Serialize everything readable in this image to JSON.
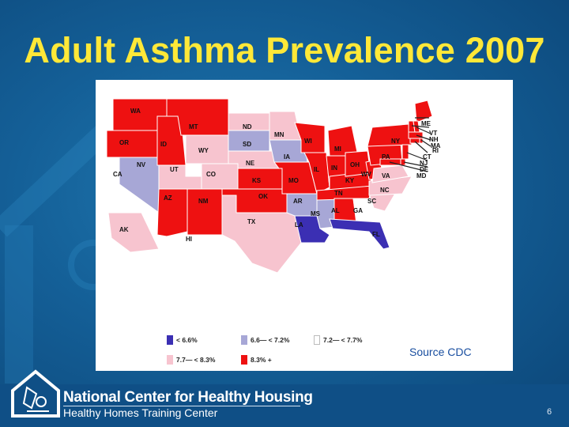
{
  "title": "Adult Asthma Prevalence 2007",
  "source": "Source CDC",
  "colors": {
    "title": "#ffe838",
    "lt66": "#3b2fb3",
    "c66_72": "#a7a7d6",
    "c72_77": "#ffffff",
    "c77_83": "#f7c4cf",
    "c83p": "#ee1111"
  },
  "legend": [
    {
      "label": "< 6.6%",
      "color_key": "lt66"
    },
    {
      "label": "6.6— < 7.2%",
      "color_key": "c66_72"
    },
    {
      "label": "7.2— < 7.7%",
      "color_key": "c72_77"
    },
    {
      "label": "7.7— < 8.3%",
      "color_key": "c77_83"
    },
    {
      "label": "8.3% +",
      "color_key": "c83p"
    }
  ],
  "states": [
    {
      "abbr": "WA",
      "class": "c83p"
    },
    {
      "abbr": "OR",
      "class": "c83p"
    },
    {
      "abbr": "ID",
      "class": "c83p"
    },
    {
      "abbr": "MT",
      "class": "c83p"
    },
    {
      "abbr": "WY",
      "class": "c77_83"
    },
    {
      "abbr": "NV",
      "class": "c66_72"
    },
    {
      "abbr": "CA",
      "class": "c72_77"
    },
    {
      "abbr": "UT",
      "class": "c77_83"
    },
    {
      "abbr": "CO",
      "class": "c77_83"
    },
    {
      "abbr": "AZ",
      "class": "c83p"
    },
    {
      "abbr": "NM",
      "class": "c83p"
    },
    {
      "abbr": "ND",
      "class": "c77_83"
    },
    {
      "abbr": "SD",
      "class": "c66_72"
    },
    {
      "abbr": "NE",
      "class": "c77_83"
    },
    {
      "abbr": "KS",
      "class": "c83p"
    },
    {
      "abbr": "OK",
      "class": "c83p"
    },
    {
      "abbr": "TX",
      "class": "c77_83"
    },
    {
      "abbr": "MN",
      "class": "c77_83"
    },
    {
      "abbr": "IA",
      "class": "c66_72"
    },
    {
      "abbr": "MO",
      "class": "c83p"
    },
    {
      "abbr": "AR",
      "class": "c66_72"
    },
    {
      "abbr": "LA",
      "class": "lt66"
    },
    {
      "abbr": "WI",
      "class": "c83p"
    },
    {
      "abbr": "IL",
      "class": "c83p"
    },
    {
      "abbr": "MS",
      "class": "c66_72"
    },
    {
      "abbr": "MI",
      "class": "c83p"
    },
    {
      "abbr": "IN",
      "class": "c83p"
    },
    {
      "abbr": "KY",
      "class": "c83p"
    },
    {
      "abbr": "TN",
      "class": "c83p"
    },
    {
      "abbr": "AL",
      "class": "c83p"
    },
    {
      "abbr": "OH",
      "class": "c83p"
    },
    {
      "abbr": "WV",
      "class": "c83p"
    },
    {
      "abbr": "GA",
      "class": "c72_77"
    },
    {
      "abbr": "FL",
      "class": "lt66"
    },
    {
      "abbr": "SC",
      "class": "c77_83"
    },
    {
      "abbr": "NC",
      "class": "c77_83"
    },
    {
      "abbr": "VA",
      "class": "c77_83"
    },
    {
      "abbr": "PA",
      "class": "c83p"
    },
    {
      "abbr": "NY",
      "class": "c83p"
    },
    {
      "abbr": "ME",
      "class": "c83p"
    },
    {
      "abbr": "VT",
      "class": "c83p"
    },
    {
      "abbr": "NH",
      "class": "c83p"
    },
    {
      "abbr": "MA",
      "class": "c83p"
    },
    {
      "abbr": "RI",
      "class": "c83p"
    },
    {
      "abbr": "CT",
      "class": "c83p"
    },
    {
      "abbr": "NJ",
      "class": "c83p"
    },
    {
      "abbr": "DE",
      "class": "c83p"
    },
    {
      "abbr": "MD",
      "class": "c83p"
    },
    {
      "abbr": "AK",
      "class": "c77_83"
    },
    {
      "abbr": "HI",
      "class": "c72_77"
    }
  ],
  "footer": {
    "org_name": "National Center for Healthy Housing",
    "org_sub": "Healthy Homes Training Center",
    "page_number": "6"
  }
}
